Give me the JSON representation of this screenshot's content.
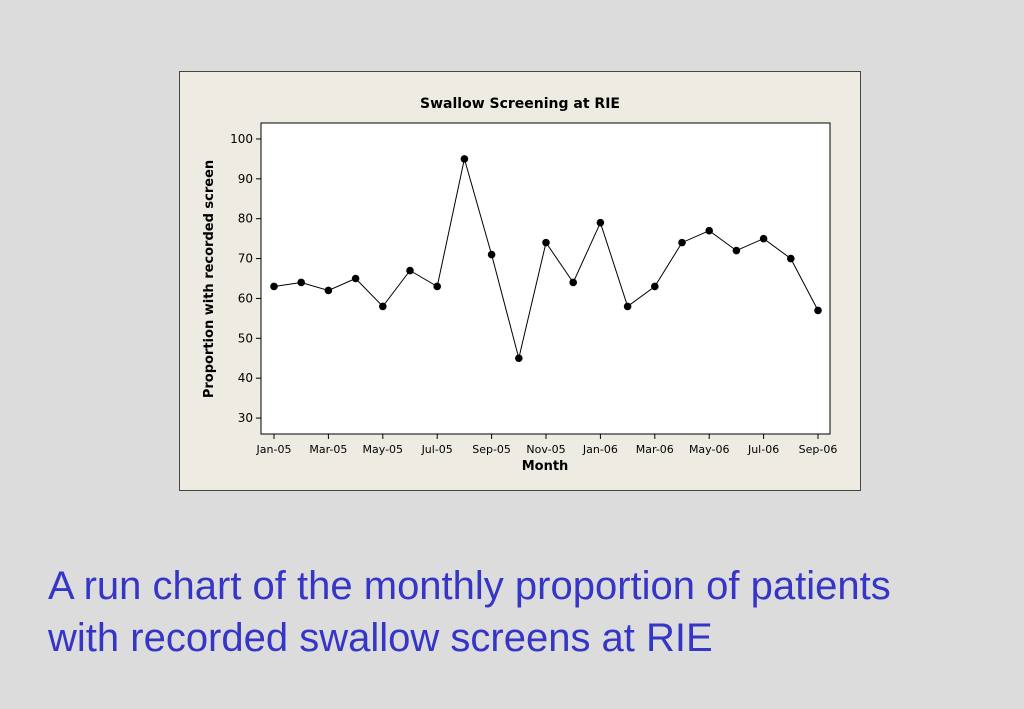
{
  "chart_data": {
    "type": "line",
    "title": "Swallow Screening at RIE",
    "xlabel": "Month",
    "ylabel": "Proportion with recorded screen",
    "ylim": [
      26,
      104
    ],
    "yticks": [
      30,
      40,
      50,
      60,
      70,
      80,
      90,
      100
    ],
    "xtick_labels": [
      "Jan-05",
      "Mar-05",
      "May-05",
      "Jul-05",
      "Sep-05",
      "Nov-05",
      "Jan-06",
      "Mar-06",
      "May-06",
      "Jul-06",
      "Sep-06"
    ],
    "x": [
      "Jan-05",
      "Feb-05",
      "Mar-05",
      "Apr-05",
      "May-05",
      "Jun-05",
      "Jul-05",
      "Aug-05",
      "Sep-05",
      "Oct-05",
      "Nov-05",
      "Dec-05",
      "Jan-06",
      "Feb-06",
      "Mar-06",
      "Apr-06",
      "May-06",
      "Jun-06",
      "Jul-06",
      "Aug-06",
      "Sep-06"
    ],
    "values": [
      63,
      64,
      62,
      65,
      58,
      67,
      63,
      95,
      71,
      45,
      74,
      64,
      79,
      58,
      63,
      74,
      77,
      72,
      75,
      70,
      57
    ],
    "grid": false,
    "legend": "none",
    "colors": {
      "line": "#000000",
      "marker": "#000000",
      "plot_bg": "#ffffff",
      "frame_bg": "#eeebe2"
    }
  },
  "caption": {
    "line1": "A run chart of the monthly proportion of patients",
    "line2": "with recorded swallow screens at RIE"
  }
}
